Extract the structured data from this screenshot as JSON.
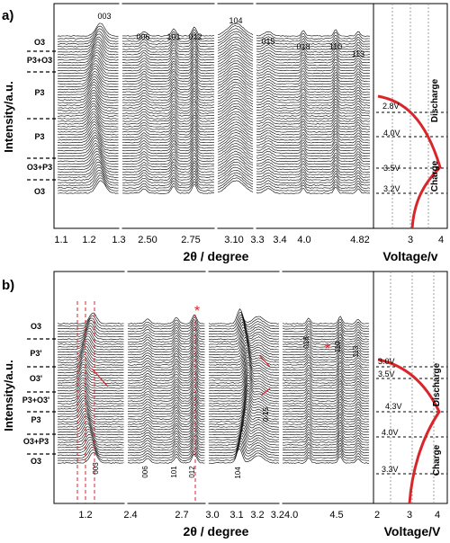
{
  "chart_data": [
    {
      "panel_label": "a)",
      "type": "line",
      "ylabel": "Intensity/a.u.",
      "xlabel": "2θ / degree",
      "x_segments": [
        {
          "range": [
            1.1,
            1.3
          ],
          "tick_labels": [
            "1.1",
            "1.2",
            "1.3"
          ]
        },
        {
          "range": [
            2.4,
            2.95
          ],
          "tick_labels": [
            "2.50",
            "2.75"
          ]
        },
        {
          "range": [
            3.0,
            3.35
          ],
          "tick_labels": [
            "3.10",
            "3.3"
          ]
        },
        {
          "range": [
            3.35,
            4.9
          ],
          "tick_labels": [
            "3.4",
            "4.0",
            "4.82"
          ]
        }
      ],
      "peak_labels": [
        "003",
        "006",
        "101",
        "012",
        "104",
        "015",
        "018",
        "110",
        "113"
      ],
      "phase_labels": [
        "O3",
        "P3+O3",
        "P3",
        "P3",
        "O3+P3",
        "O3"
      ],
      "voltage_panel": {
        "xlabel": "Voltage/v",
        "xlim": [
          2,
          4
        ],
        "tick_labels": [
          "3",
          "4"
        ],
        "voltage_labels": [
          "2.8V",
          "4.0V",
          "3.5V",
          "3.2V"
        ],
        "process_labels": [
          "Discharge",
          "Charge"
        ]
      }
    },
    {
      "panel_label": "b)",
      "type": "line",
      "ylabel": "Intensity/a.u.",
      "xlabel": "2θ / degree",
      "x_segments": [
        {
          "range": [
            1.0,
            1.45
          ],
          "tick_labels": [
            "1.2"
          ]
        },
        {
          "range": [
            2.35,
            2.95
          ],
          "tick_labels": [
            "2.4",
            "2.7"
          ]
        },
        {
          "range": [
            3.0,
            3.3
          ],
          "tick_labels": [
            "3.0",
            "3.1",
            "3.2"
          ]
        },
        {
          "range": [
            3.3,
            4.9
          ],
          "tick_labels": [
            "3.24.0",
            "4.5"
          ]
        }
      ],
      "peak_labels": [
        "003",
        "006",
        "101",
        "012",
        "104",
        "0-15",
        "018",
        "110",
        "113"
      ],
      "phase_labels": [
        "O3",
        "P3'",
        "O3'",
        "P3+O3'",
        "P3",
        "O3+P3",
        "O3"
      ],
      "voltage_panel": {
        "xlabel": "Voltage/V",
        "xlim": [
          2,
          4
        ],
        "tick_labels": [
          "2",
          "3",
          "4"
        ],
        "voltage_labels": [
          "3.0V",
          "3.5V",
          "4.3V",
          "4.0V",
          "3.3V"
        ],
        "process_labels": [
          "Discharge",
          "Charge"
        ]
      }
    }
  ],
  "colors": {
    "curve": "#000000",
    "voltage": "#d9262b",
    "guide": "#d9262b",
    "star": "#d9262b"
  }
}
